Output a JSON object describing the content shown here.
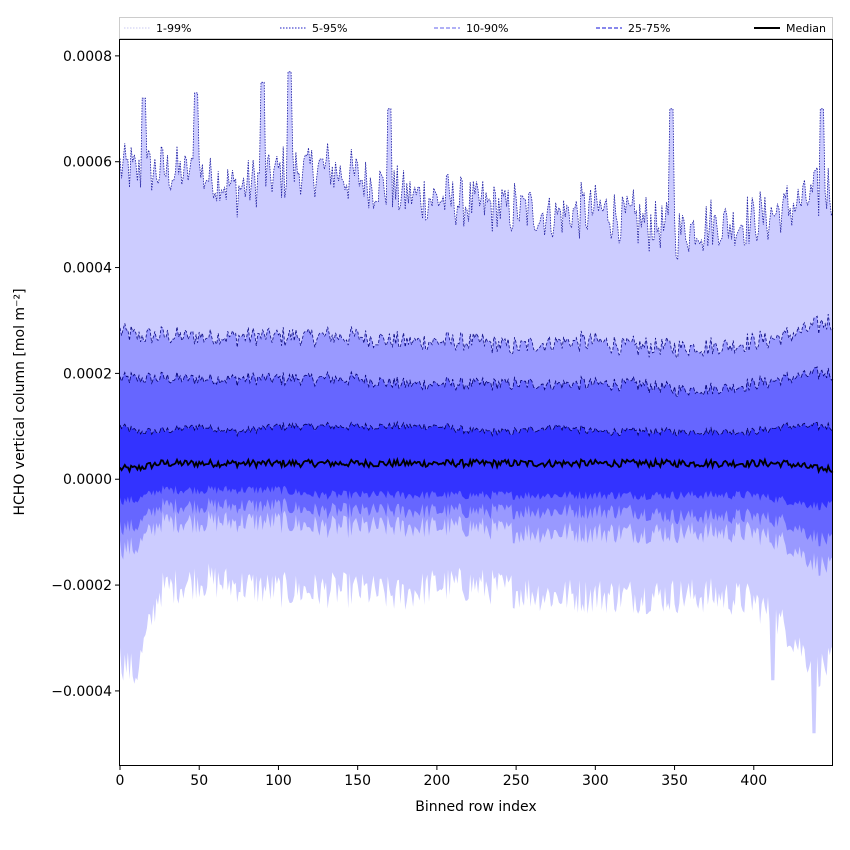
{
  "chart_data": {
    "type": "area",
    "xlabel": "Binned row index",
    "ylabel": "HCHO vertical column [mol m⁻²]",
    "xlim": [
      0,
      450
    ],
    "ylim": [
      -0.00054,
      0.00083
    ],
    "x_ticks": [
      {
        "value": 0,
        "label": "0"
      },
      {
        "value": 50,
        "label": "50"
      },
      {
        "value": 100,
        "label": "100"
      },
      {
        "value": 150,
        "label": "150"
      },
      {
        "value": 200,
        "label": "200"
      },
      {
        "value": 250,
        "label": "250"
      },
      {
        "value": 300,
        "label": "300"
      },
      {
        "value": 350,
        "label": "350"
      },
      {
        "value": 400,
        "label": "400"
      }
    ],
    "y_ticks": [
      {
        "value": 0.0008,
        "label": "0.0008"
      },
      {
        "value": 0.0006,
        "label": "0.0006"
      },
      {
        "value": 0.0004,
        "label": "0.0004"
      },
      {
        "value": 0.0002,
        "label": "0.0002"
      },
      {
        "value": 0.0,
        "label": "0.0000"
      },
      {
        "value": -0.0002,
        "label": "−0.0002"
      },
      {
        "value": -0.0004,
        "label": "−0.0004"
      }
    ],
    "legend": {
      "placement": "top, above plot",
      "entries": [
        {
          "label": "1-99%",
          "color": "#d4d4f4",
          "style": "dotted"
        },
        {
          "label": "5-95%",
          "color": "#4a4ad0",
          "style": "dotted"
        },
        {
          "label": "10-90%",
          "color": "#8080f0",
          "style": "dashed"
        },
        {
          "label": "25-75%",
          "color": "#4040e0",
          "style": "dashed"
        },
        {
          "label": "Median",
          "color": "#000000",
          "style": "solid"
        }
      ]
    },
    "x_knots": [
      0,
      10,
      25,
      50,
      75,
      100,
      125,
      150,
      175,
      200,
      225,
      250,
      275,
      300,
      325,
      350,
      375,
      400,
      420,
      440,
      450
    ],
    "bands": [
      {
        "name": "1-99%",
        "color": "#ccccff",
        "edge_color": "#1a1aa0",
        "edge_dash": "1.5,1.2",
        "upper": [
          0.00059,
          0.00058,
          0.00058,
          0.00058,
          0.00055,
          0.00058,
          0.00059,
          0.00057,
          0.00054,
          0.00053,
          0.00052,
          0.00051,
          0.0005,
          0.00051,
          0.00049,
          0.00047,
          0.00048,
          0.00049,
          0.00051,
          0.00054,
          0.00055
        ],
        "lower": [
          -0.00034,
          -0.00037,
          -0.00021,
          -0.00019,
          -0.0002,
          -0.00021,
          -0.00021,
          -0.00021,
          -0.00022,
          -0.0002,
          -0.0002,
          -0.00021,
          -0.00022,
          -0.00022,
          -0.00022,
          -0.00022,
          -0.00022,
          -0.00023,
          -0.00028,
          -0.00036,
          -0.00035
        ]
      },
      {
        "name": "5-95%",
        "color": "#9999ff",
        "edge_color": "#0a0a80",
        "edge_dash": "3,2",
        "upper": [
          0.00028,
          0.00027,
          0.00027,
          0.00027,
          0.00027,
          0.00027,
          0.00027,
          0.00027,
          0.00026,
          0.00026,
          0.00026,
          0.00025,
          0.00026,
          0.00026,
          0.00025,
          0.00025,
          0.00025,
          0.00026,
          0.00027,
          0.00029,
          0.0003
        ],
        "lower": [
          -0.00013,
          -0.00013,
          -8e-05,
          -8e-05,
          -8e-05,
          -8e-05,
          -9e-05,
          -9e-05,
          -9e-05,
          -9e-05,
          -9e-05,
          -0.0001,
          -0.0001,
          -0.0001,
          -0.0001,
          -0.0001,
          -0.0001,
          -0.0001,
          -0.00012,
          -0.00016,
          -0.00017
        ]
      },
      {
        "name": "10-90%",
        "color": "#6666ff",
        "edge_color": "#000070",
        "edge_dash": "4,2",
        "upper": [
          0.00019,
          0.00019,
          0.00019,
          0.00019,
          0.00019,
          0.00019,
          0.00019,
          0.00019,
          0.00018,
          0.00018,
          0.00018,
          0.00018,
          0.00018,
          0.00018,
          0.00018,
          0.00017,
          0.00017,
          0.00018,
          0.00019,
          0.0002,
          0.0002
        ],
        "lower": [
          -9e-05,
          -9e-05,
          -5e-05,
          -5e-05,
          -5e-05,
          -5e-05,
          -6e-05,
          -6e-05,
          -6e-05,
          -6e-05,
          -6e-05,
          -6e-05,
          -6e-05,
          -6e-05,
          -6e-05,
          -7e-05,
          -7e-05,
          -7e-05,
          -8e-05,
          -0.00011,
          -0.00012
        ]
      },
      {
        "name": "25-75%",
        "color": "#3333ff",
        "edge_color": "#000050",
        "edge_dash": "5,2",
        "upper": [
          0.0001,
          9e-05,
          9e-05,
          0.0001,
          9e-05,
          0.0001,
          0.0001,
          0.0001,
          0.0001,
          0.0001,
          9e-05,
          9e-05,
          0.0001,
          9e-05,
          9e-05,
          9e-05,
          9e-05,
          9e-05,
          0.0001,
          0.0001,
          0.0001
        ],
        "lower": [
          -4e-05,
          -4e-05,
          -2e-05,
          -2e-05,
          -2e-05,
          -2e-05,
          -3e-05,
          -3e-05,
          -3e-05,
          -3e-05,
          -3e-05,
          -3e-05,
          -3e-05,
          -3e-05,
          -3e-05,
          -3e-05,
          -3e-05,
          -3e-05,
          -4e-05,
          -5e-05,
          -5e-05
        ]
      }
    ],
    "median": [
      2e-05,
      2e-05,
      3e-05,
      3e-05,
      3e-05,
      3e-05,
      3e-05,
      3e-05,
      3e-05,
      3e-05,
      3e-05,
      3e-05,
      3e-05,
      3e-05,
      3e-05,
      3e-05,
      3e-05,
      3e-05,
      3e-05,
      2e-05,
      2e-05
    ],
    "spikes": [
      {
        "x": 15,
        "y": 0.00072
      },
      {
        "x": 48,
        "y": 0.00073
      },
      {
        "x": 90,
        "y": 0.00075
      },
      {
        "x": 107,
        "y": 0.00077
      },
      {
        "x": 170,
        "y": 0.0007
      },
      {
        "x": 348,
        "y": 0.0007
      },
      {
        "x": 443,
        "y": 0.0007
      }
    ],
    "lower_spikes": [
      {
        "x": 412,
        "y": -0.00038
      },
      {
        "x": 438,
        "y": -0.00048
      }
    ]
  }
}
